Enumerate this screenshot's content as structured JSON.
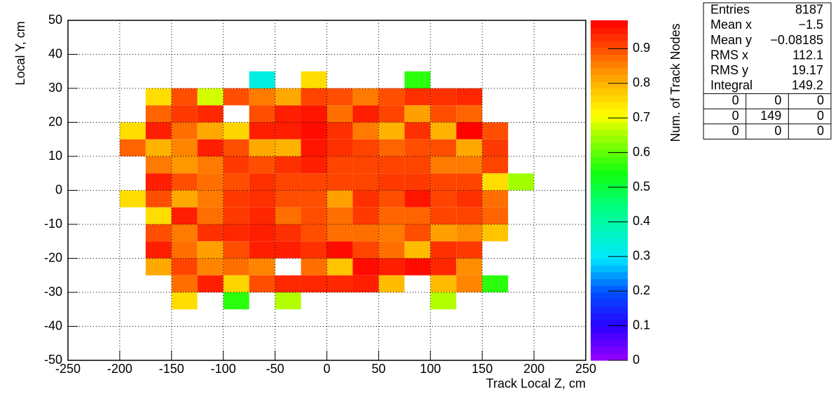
{
  "chart_data": {
    "type": "heatmap",
    "x_label": "Track Local Z, cm",
    "y_label": "Local Y, cm",
    "z_label": "Num. of Track Nodes",
    "xlim": [
      -250,
      250
    ],
    "ylim": [
      -50,
      50
    ],
    "zlim": [
      0,
      0.982
    ],
    "xticks": [
      -250,
      -200,
      -150,
      -100,
      -50,
      0,
      50,
      100,
      150,
      200,
      250
    ],
    "yticks": [
      -50,
      -40,
      -30,
      -20,
      -10,
      0,
      10,
      20,
      30,
      40,
      50
    ],
    "zticks": [
      0,
      0.1,
      0.2,
      0.3,
      0.4,
      0.5,
      0.6,
      0.7,
      0.8,
      0.9
    ],
    "grid": true,
    "palette": [
      [
        0,
        "#9a00ff"
      ],
      [
        0.1,
        "#2a00ff"
      ],
      [
        0.2,
        "#0050ff"
      ],
      [
        0.3,
        "#00e8ff"
      ],
      [
        0.45,
        "#00ff80"
      ],
      [
        0.55,
        "#10ff10"
      ],
      [
        0.66,
        "#a0ff00"
      ],
      [
        0.72,
        "#ffff00"
      ],
      [
        0.8,
        "#ffc000"
      ],
      [
        0.87,
        "#ff8000"
      ],
      [
        0.93,
        "#ff4000"
      ],
      [
        1,
        "#ff0000"
      ]
    ],
    "xbins": [
      -200,
      -175,
      -150,
      -125,
      -100,
      -75,
      -50,
      -25,
      0,
      25,
      50,
      75,
      100,
      125,
      150,
      175,
      200
    ],
    "ybins": [
      35,
      30,
      25,
      20,
      15,
      10,
      5,
      0,
      -5,
      -10,
      -15,
      -20,
      -25,
      -30,
      -35
    ],
    "z": [
      [
        null,
        null,
        null,
        null,
        null,
        0.33,
        null,
        0.75,
        null,
        null,
        null,
        0.56,
        null,
        null,
        null,
        null
      ],
      [
        null,
        0.75,
        0.9,
        0.68,
        0.9,
        0.86,
        0.81,
        0.91,
        0.9,
        0.86,
        0.9,
        0.93,
        0.93,
        0.94,
        null,
        null
      ],
      [
        null,
        0.88,
        0.92,
        0.94,
        null,
        0.9,
        0.95,
        0.96,
        0.87,
        0.95,
        0.91,
        0.82,
        0.9,
        0.88,
        null,
        null
      ],
      [
        0.75,
        0.95,
        0.87,
        0.81,
        0.76,
        0.95,
        0.95,
        0.97,
        0.93,
        0.86,
        0.8,
        0.93,
        0.8,
        0.98,
        0.9,
        null
      ],
      [
        0.88,
        0.8,
        0.85,
        0.95,
        0.9,
        0.81,
        0.8,
        0.96,
        0.93,
        0.91,
        0.88,
        0.9,
        0.9,
        0.81,
        0.92,
        null
      ],
      [
        null,
        0.86,
        0.83,
        0.86,
        0.92,
        0.9,
        0.93,
        0.95,
        0.91,
        0.91,
        0.91,
        0.91,
        0.86,
        0.86,
        0.91,
        null
      ],
      [
        null,
        0.95,
        0.9,
        0.87,
        0.9,
        0.93,
        0.91,
        0.91,
        0.91,
        0.91,
        0.92,
        0.92,
        0.91,
        0.91,
        0.75,
        0.65
      ],
      [
        0.75,
        0.9,
        0.81,
        0.86,
        0.92,
        0.93,
        0.9,
        0.9,
        0.82,
        0.93,
        0.9,
        0.96,
        0.91,
        0.93,
        0.87,
        null
      ],
      [
        null,
        0.75,
        0.95,
        0.87,
        0.92,
        0.94,
        0.87,
        0.9,
        0.87,
        0.92,
        0.88,
        0.88,
        0.91,
        0.91,
        0.88,
        null
      ],
      [
        null,
        0.9,
        0.86,
        0.93,
        0.94,
        0.95,
        0.93,
        0.9,
        0.87,
        0.87,
        0.86,
        0.9,
        0.82,
        0.84,
        0.78,
        null
      ],
      [
        null,
        0.95,
        0.87,
        0.82,
        0.9,
        0.95,
        0.95,
        0.93,
        0.97,
        0.91,
        0.87,
        0.79,
        0.93,
        0.92,
        null,
        null
      ],
      [
        null,
        0.81,
        0.91,
        0.85,
        0.87,
        0.85,
        null,
        0.87,
        0.78,
        0.97,
        0.95,
        0.97,
        0.94,
        0.84,
        null,
        null
      ],
      [
        null,
        null,
        0.87,
        0.95,
        0.76,
        0.9,
        0.94,
        0.94,
        0.94,
        0.95,
        0.79,
        null,
        0.79,
        0.85,
        0.56,
        null
      ],
      [
        null,
        null,
        0.75,
        null,
        0.56,
        null,
        0.66,
        null,
        null,
        null,
        null,
        null,
        0.66,
        null,
        null,
        null
      ]
    ],
    "stats": {
      "rows": [
        [
          "Entries",
          "8187"
        ],
        [
          "Mean x",
          "−1.5"
        ],
        [
          "Mean y",
          "−0.08185"
        ],
        [
          "RMS x",
          "112.1"
        ],
        [
          "RMS y",
          "19.17"
        ],
        [
          "Integral",
          "149.2"
        ]
      ],
      "grid": [
        [
          "0",
          "0",
          "0"
        ],
        [
          "0",
          "149",
          "0"
        ],
        [
          "0",
          "0",
          "0"
        ]
      ]
    }
  }
}
